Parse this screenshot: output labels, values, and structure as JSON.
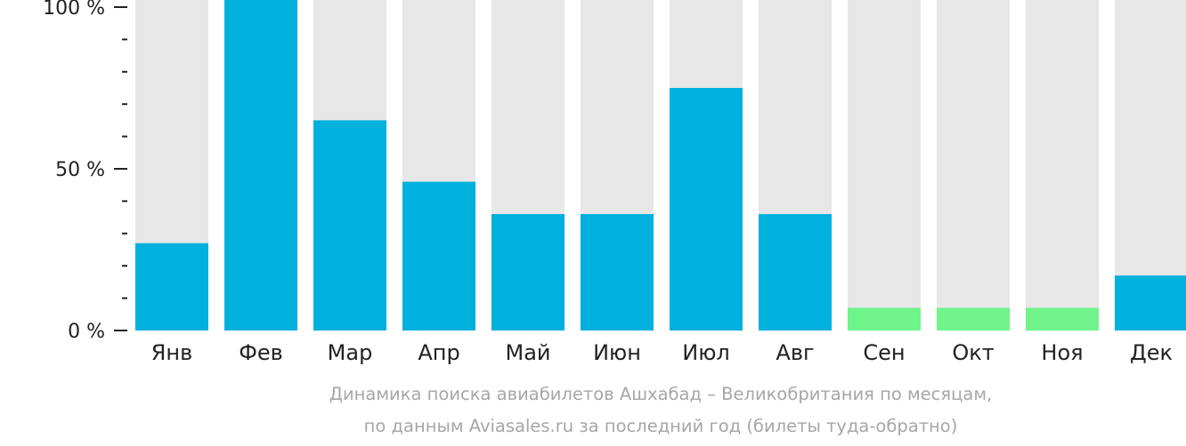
{
  "chart_data": {
    "type": "bar",
    "categories": [
      "Янв",
      "Фев",
      "Мар",
      "Апр",
      "Май",
      "Июн",
      "Июл",
      "Авг",
      "Сен",
      "Окт",
      "Ноя",
      "Дек"
    ],
    "values": [
      27,
      100,
      65,
      46,
      36,
      36,
      75,
      36,
      7,
      7,
      7,
      17
    ],
    "ylim": [
      0,
      100
    ],
    "yticks": [
      {
        "value": 100,
        "label": "100 %"
      },
      {
        "value": 50,
        "label": "50 %"
      },
      {
        "value": 0,
        "label": "0 %"
      }
    ],
    "minor_ticks_per_major": 5,
    "caption_lines": [
      "Динамика поиска авиабилетов Ашхабад – Великобритания по месяцам,",
      "по данным Aviasales.ru за последний год (билеты туда-обратно)"
    ],
    "colors": {
      "bar_main": "#00b0dd",
      "bar_low": "#6ff38b",
      "bar_background": "#e7e7e7",
      "axis": "#222222",
      "caption": "#a6a6a6"
    },
    "low_months": [
      "Сен",
      "Окт",
      "Ноя"
    ]
  }
}
